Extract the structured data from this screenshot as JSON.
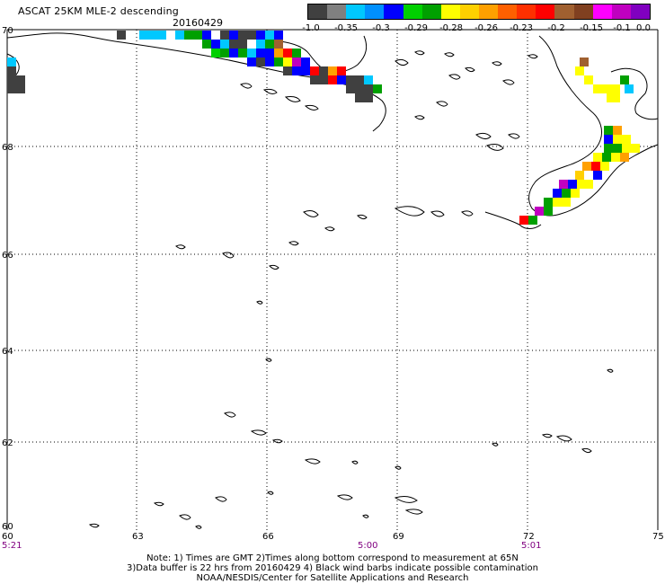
{
  "header": {
    "title": "ASCAT 25KM MLE-2 descending",
    "date": "20160429"
  },
  "colorbar": {
    "colors": [
      "#404040",
      "#808080",
      "#00c8ff",
      "#0090ff",
      "#0000ff",
      "#00d000",
      "#00a000",
      "#ffff00",
      "#ffd000",
      "#ffa000",
      "#ff6000",
      "#ff3000",
      "#ff0000",
      "#a06030",
      "#804020",
      "#ff00ff",
      "#c000c0",
      "#8000c0"
    ],
    "labels": [
      "-1.0",
      "-0.35",
      "-0.3",
      "-0.29",
      "-0.28",
      "-0.26",
      "-0.23",
      "-0.2",
      "-0.15",
      "-0.1",
      "0.0"
    ]
  },
  "map": {
    "lat_labels": [
      "70",
      "68",
      "66",
      "64",
      "62",
      "60"
    ],
    "lon_labels": [
      "63",
      "66",
      "69",
      "72",
      "75"
    ],
    "corner_label": "60",
    "time_labels": [
      "5:21",
      "5:00",
      "5:01"
    ]
  },
  "notes": {
    "line1": "Note: 1) Times are GMT 2)Times along bottom correspond to measurement at 65N",
    "line2": "3)Data buffer is 22 hrs from 20160429 4) Black wind barbs indicate possible contamination",
    "line3": "NOAA/NESDIS/Center for Satellite Applications and Research"
  }
}
